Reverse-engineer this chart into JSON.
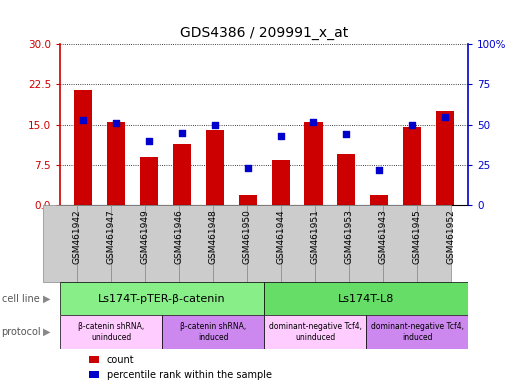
{
  "title": "GDS4386 / 209991_x_at",
  "samples": [
    "GSM461942",
    "GSM461947",
    "GSM461949",
    "GSM461946",
    "GSM461948",
    "GSM461950",
    "GSM461944",
    "GSM461951",
    "GSM461953",
    "GSM461943",
    "GSM461945",
    "GSM461952"
  ],
  "counts": [
    21.5,
    15.5,
    9.0,
    11.5,
    14.0,
    2.0,
    8.5,
    15.5,
    9.5,
    2.0,
    14.5,
    17.5
  ],
  "percentiles": [
    53,
    51,
    40,
    45,
    50,
    23,
    43,
    52,
    44,
    22,
    50,
    55
  ],
  "ylim_left": [
    0,
    30
  ],
  "ylim_right": [
    0,
    100
  ],
  "yticks_left": [
    0,
    7.5,
    15,
    22.5,
    30
  ],
  "yticks_right": [
    0,
    25,
    50,
    75,
    100
  ],
  "bar_color": "#cc0000",
  "dot_color": "#0000cc",
  "cell_line_groups": [
    {
      "label": "Ls174T-pTER-β-catenin",
      "start": 0,
      "end": 6,
      "color": "#88ee88"
    },
    {
      "label": "Ls174T-L8",
      "start": 6,
      "end": 12,
      "color": "#66dd66"
    }
  ],
  "protocol_groups": [
    {
      "label": "β-catenin shRNA,\nuninduced",
      "start": 0,
      "end": 3,
      "color": "#ffccff"
    },
    {
      "label": "β-catenin shRNA,\ninduced",
      "start": 3,
      "end": 6,
      "color": "#cc88ee"
    },
    {
      "label": "dominant-negative Tcf4,\nuninduced",
      "start": 6,
      "end": 9,
      "color": "#ffccff"
    },
    {
      "label": "dominant-negative Tcf4,\ninduced",
      "start": 9,
      "end": 12,
      "color": "#cc88ee"
    }
  ],
  "legend_count_label": "count",
  "legend_pct_label": "percentile rank within the sample",
  "cell_line_label": "cell line",
  "protocol_label": "protocol",
  "bar_width": 0.55,
  "bg_color": "#ffffff",
  "sample_bg": "#cccccc"
}
